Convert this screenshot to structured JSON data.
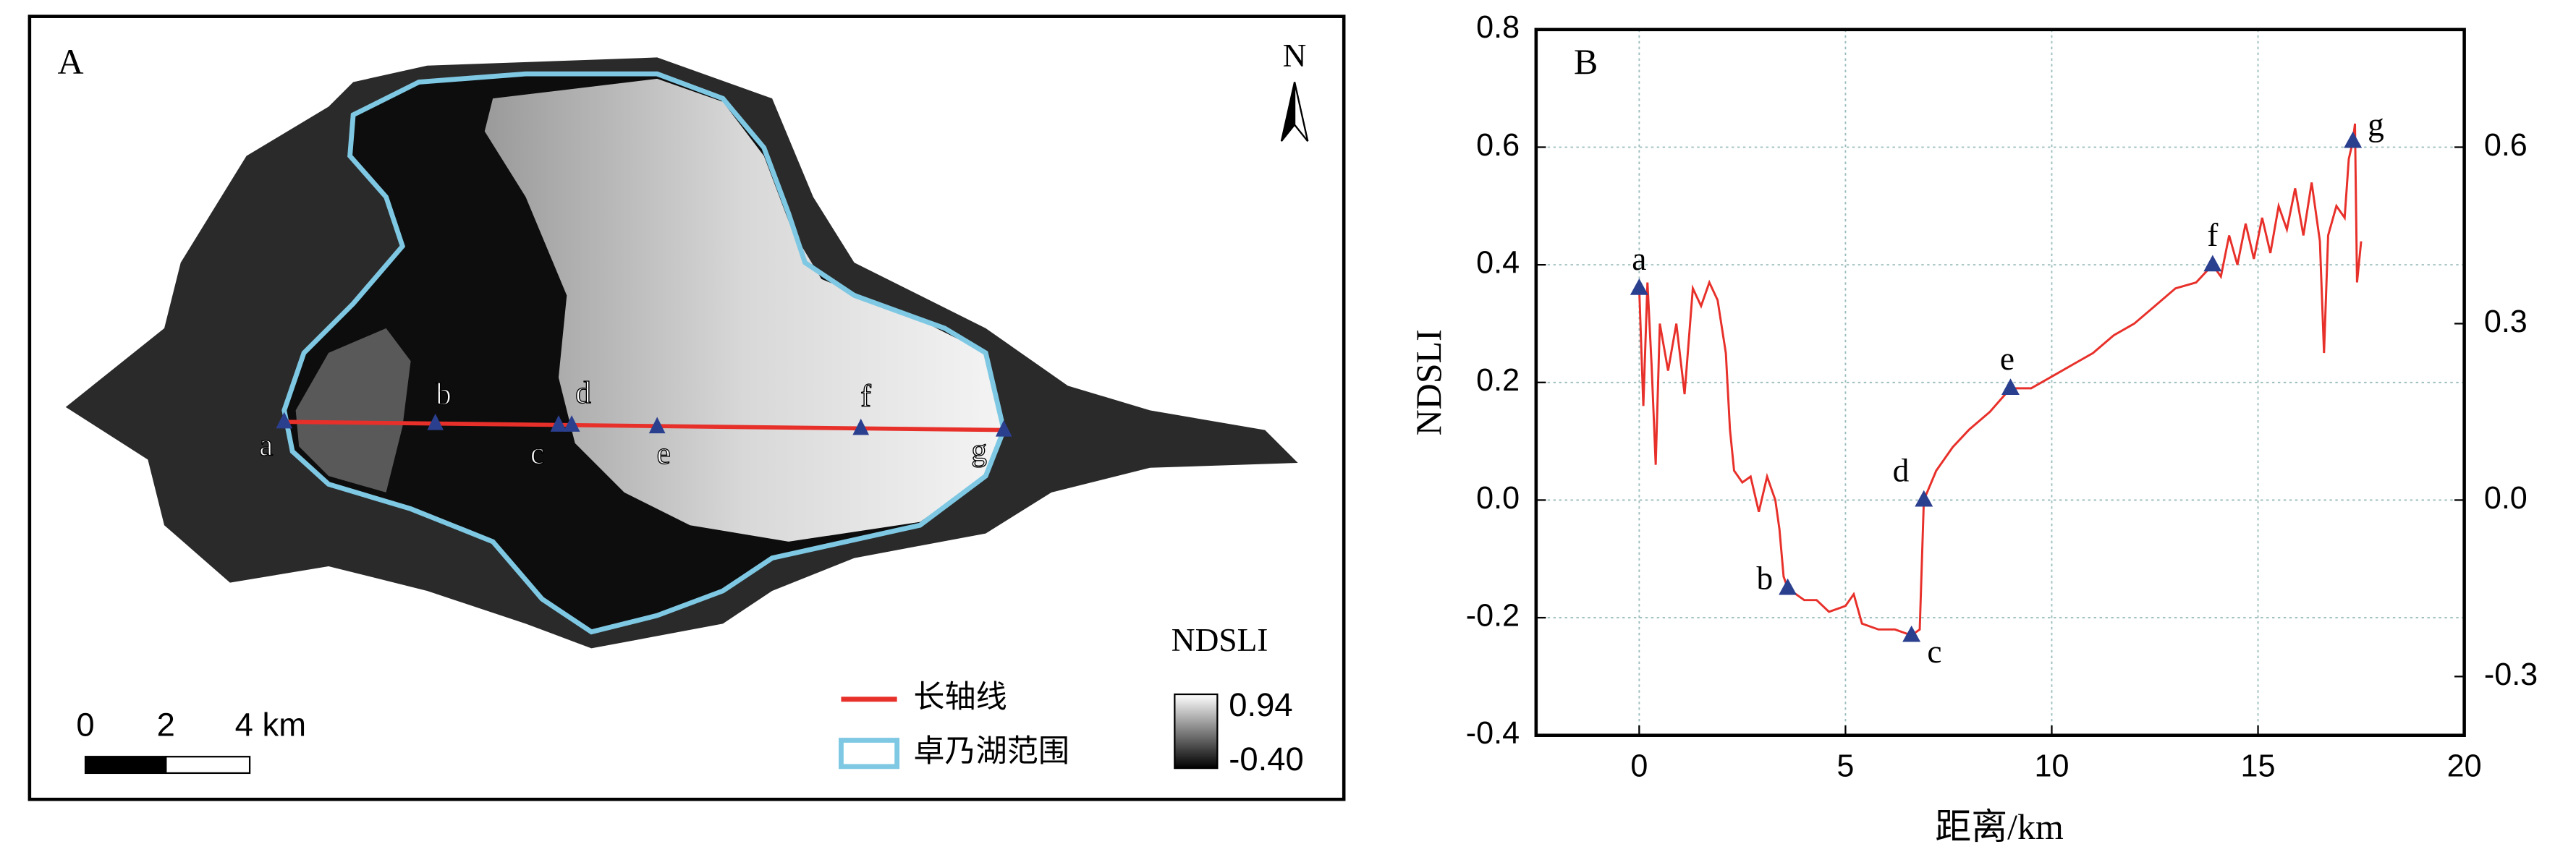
{
  "map_panel": {
    "label": "A",
    "north": "N",
    "point_labels": [
      "a",
      "b",
      "c",
      "d",
      "e",
      "f",
      "g"
    ],
    "legend": {
      "line": "长轴线",
      "boundary": "卓乃湖范围"
    },
    "colorbar": {
      "title": "NDSLI",
      "max": "0.94",
      "min": "-0.40"
    },
    "scalebar": [
      "0",
      "2",
      "4 km"
    ]
  },
  "chart_data": {
    "type": "line",
    "panel_label": "B",
    "xlabel": "距离/km",
    "ylabel": "NDSLI",
    "xlim": [
      -2.5,
      20
    ],
    "xticks": [
      0,
      5,
      10,
      15,
      20
    ],
    "ylim": [
      -0.4,
      0.8
    ],
    "yticks": [
      -0.4,
      -0.2,
      {
        "value": 0,
        "label": "0.0"
      },
      0.2,
      0.4,
      0.6,
      0.8
    ],
    "y2lim": [
      -0.4,
      0.8
    ],
    "y2ticks": [
      -0.3,
      {
        "value": 0,
        "label": "0.0"
      },
      0.3,
      0.6
    ],
    "grid": true,
    "series": [
      {
        "color": "#e8302a",
        "x": [
          0,
          0.1,
          0.2,
          0.3,
          0.4,
          0.5,
          0.7,
          0.9,
          1.1,
          1.3,
          1.5,
          1.7,
          1.9,
          2.1,
          2.2,
          2.3,
          2.5,
          2.7,
          2.9,
          3.1,
          3.3,
          3.4,
          3.5,
          3.6,
          3.8,
          4.0,
          4.3,
          4.6,
          5.0,
          5.2,
          5.4,
          5.8,
          6.2,
          6.6,
          6.8,
          6.9,
          7.2,
          7.6,
          8.0,
          8.5,
          9.0,
          9.5,
          10.0,
          10.5,
          11.0,
          11.5,
          12.0,
          12.5,
          13.0,
          13.5,
          13.9,
          14.1,
          14.3,
          14.5,
          14.7,
          14.9,
          15.1,
          15.3,
          15.5,
          15.7,
          15.9,
          16.1,
          16.3,
          16.5,
          16.6,
          16.7,
          16.9,
          17.1,
          17.2,
          17.3,
          17.35,
          17.4,
          17.5
        ],
        "values": [
          0.36,
          0.16,
          0.37,
          0.23,
          0.06,
          0.3,
          0.22,
          0.3,
          0.18,
          0.36,
          0.33,
          0.37,
          0.34,
          0.25,
          0.12,
          0.05,
          0.03,
          0.04,
          -0.02,
          0.04,
          0.0,
          -0.05,
          -0.13,
          -0.15,
          -0.16,
          -0.17,
          -0.17,
          -0.19,
          -0.18,
          -0.16,
          -0.21,
          -0.22,
          -0.22,
          -0.23,
          -0.22,
          0.0,
          0.05,
          0.09,
          0.12,
          0.15,
          0.19,
          0.19,
          0.21,
          0.23,
          0.25,
          0.28,
          0.3,
          0.33,
          0.36,
          0.37,
          0.4,
          0.38,
          0.45,
          0.4,
          0.47,
          0.41,
          0.48,
          0.42,
          0.5,
          0.46,
          0.53,
          0.45,
          0.54,
          0.44,
          0.25,
          0.45,
          0.5,
          0.48,
          0.58,
          0.61,
          0.64,
          0.37,
          0.44
        ]
      }
    ],
    "points": {
      "color": "#2b3f8f",
      "labels": [
        "a",
        "b",
        "c",
        "d",
        "e",
        "f",
        "g"
      ],
      "x": [
        0,
        3.6,
        6.6,
        6.9,
        9.0,
        13.9,
        17.3
      ],
      "values": [
        0.36,
        -0.15,
        -0.23,
        0.0,
        0.19,
        0.4,
        0.61
      ]
    }
  }
}
